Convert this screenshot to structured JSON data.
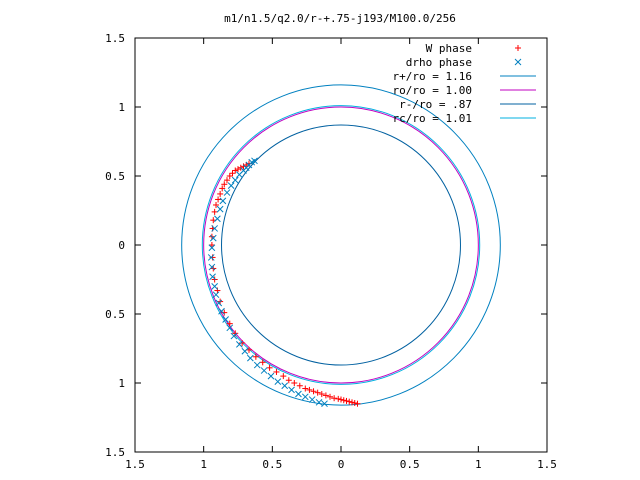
{
  "chart_data": {
    "type": "scatter",
    "title": "m1/n1.5/q2.0/r-+.75-j193/M100.0/256",
    "xlabel": "",
    "ylabel": "",
    "xlim": [
      -1.5,
      1.5
    ],
    "ylim": [
      -1.5,
      1.5
    ],
    "x_ticks": [
      "1.5",
      "1",
      "0.5",
      "0",
      "0.5",
      "1",
      "1.5"
    ],
    "y_ticks": [
      "1.5",
      "1",
      "0.5",
      "0",
      "0.5",
      "1",
      "1.5"
    ],
    "grid": false,
    "legend_position": "top-right",
    "series": [
      {
        "name": "W phase",
        "kind": "points",
        "marker": "plus",
        "color": "#ff0000",
        "points": [
          [
            0.12,
            -1.15
          ],
          [
            0.1,
            -1.145
          ],
          [
            0.08,
            -1.14
          ],
          [
            0.06,
            -1.135
          ],
          [
            0.04,
            -1.13
          ],
          [
            0.02,
            -1.125
          ],
          [
            0.0,
            -1.12
          ],
          [
            -0.02,
            -1.115
          ],
          [
            -0.05,
            -1.11
          ],
          [
            -0.08,
            -1.1
          ],
          [
            -0.11,
            -1.09
          ],
          [
            -0.14,
            -1.08
          ],
          [
            -0.17,
            -1.07
          ],
          [
            -0.2,
            -1.06
          ],
          [
            -0.23,
            -1.05
          ],
          [
            -0.26,
            -1.04
          ],
          [
            -0.3,
            -1.02
          ],
          [
            -0.34,
            -1.0
          ],
          [
            -0.38,
            -0.98
          ],
          [
            -0.42,
            -0.95
          ],
          [
            -0.47,
            -0.92
          ],
          [
            -0.52,
            -0.89
          ],
          [
            -0.57,
            -0.85
          ],
          [
            -0.62,
            -0.81
          ],
          [
            -0.67,
            -0.76
          ],
          [
            -0.72,
            -0.71
          ],
          [
            -0.77,
            -0.64
          ],
          [
            -0.81,
            -0.57
          ],
          [
            -0.85,
            -0.49
          ],
          [
            -0.88,
            -0.41
          ],
          [
            -0.9,
            -0.33
          ],
          [
            -0.92,
            -0.25
          ],
          [
            -0.93,
            -0.17
          ],
          [
            -0.935,
            -0.09
          ],
          [
            -0.94,
            0.0
          ],
          [
            -0.94,
            0.06
          ],
          [
            -0.935,
            0.12
          ],
          [
            -0.93,
            0.18
          ],
          [
            -0.92,
            0.24
          ],
          [
            -0.91,
            0.29
          ],
          [
            -0.895,
            0.33
          ],
          [
            -0.88,
            0.37
          ],
          [
            -0.865,
            0.41
          ],
          [
            -0.85,
            0.44
          ],
          [
            -0.83,
            0.47
          ],
          [
            -0.81,
            0.5
          ],
          [
            -0.79,
            0.52
          ],
          [
            -0.77,
            0.54
          ],
          [
            -0.75,
            0.55
          ],
          [
            -0.73,
            0.56
          ],
          [
            -0.71,
            0.57
          ],
          [
            -0.69,
            0.58
          ],
          [
            -0.67,
            0.59
          ]
        ]
      },
      {
        "name": "drho phase",
        "kind": "points",
        "marker": "cross",
        "color": "#0080c0",
        "points": [
          [
            -0.63,
            0.61
          ],
          [
            -0.65,
            0.6
          ],
          [
            -0.67,
            0.58
          ],
          [
            -0.69,
            0.56
          ],
          [
            -0.71,
            0.54
          ],
          [
            -0.74,
            0.51
          ],
          [
            -0.77,
            0.47
          ],
          [
            -0.8,
            0.43
          ],
          [
            -0.83,
            0.38
          ],
          [
            -0.86,
            0.32
          ],
          [
            -0.88,
            0.26
          ],
          [
            -0.9,
            0.19
          ],
          [
            -0.92,
            0.12
          ],
          [
            -0.93,
            0.05
          ],
          [
            -0.94,
            -0.02
          ],
          [
            -0.945,
            -0.09
          ],
          [
            -0.94,
            -0.16
          ],
          [
            -0.935,
            -0.23
          ],
          [
            -0.92,
            -0.3
          ],
          [
            -0.91,
            -0.36
          ],
          [
            -0.89,
            -0.42
          ],
          [
            -0.87,
            -0.48
          ],
          [
            -0.84,
            -0.54
          ],
          [
            -0.81,
            -0.6
          ],
          [
            -0.78,
            -0.66
          ],
          [
            -0.74,
            -0.72
          ],
          [
            -0.7,
            -0.77
          ],
          [
            -0.66,
            -0.82
          ],
          [
            -0.61,
            -0.87
          ],
          [
            -0.56,
            -0.91
          ],
          [
            -0.51,
            -0.95
          ],
          [
            -0.46,
            -0.99
          ],
          [
            -0.41,
            -1.02
          ],
          [
            -0.36,
            -1.05
          ],
          [
            -0.31,
            -1.08
          ],
          [
            -0.26,
            -1.1
          ],
          [
            -0.21,
            -1.12
          ],
          [
            -0.16,
            -1.14
          ],
          [
            -0.12,
            -1.15
          ]
        ]
      },
      {
        "name": "r+/ro = 1.16",
        "kind": "circle",
        "r": 1.16,
        "color": "#0080c0"
      },
      {
        "name": "ro/ro = 1.00",
        "kind": "circle",
        "r": 1.0,
        "color": "#c000c0"
      },
      {
        "name": "r-/ro = .87",
        "kind": "circle",
        "r": 0.87,
        "color": "#0060a0"
      },
      {
        "name": "rc/ro = 1.01",
        "kind": "circle",
        "r": 1.01,
        "color": "#00b0e0"
      }
    ]
  }
}
